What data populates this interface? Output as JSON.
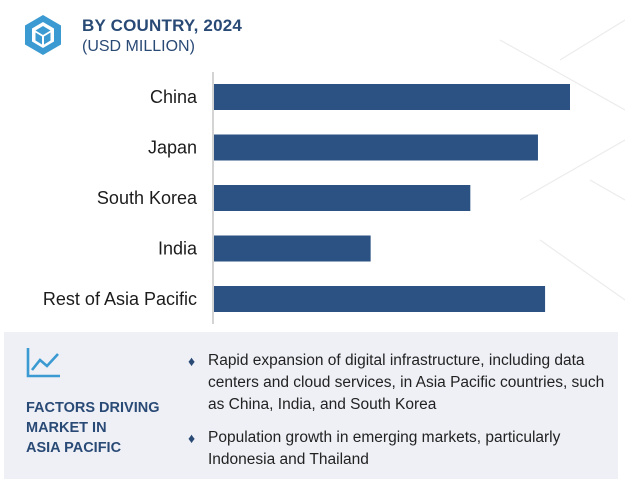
{
  "header": {
    "title": "BY COUNTRY, 2024",
    "subtitle": "(USD MILLION)",
    "logo_icon": "cube-logo-icon"
  },
  "colors": {
    "bar": "#2b5283",
    "accent": "#2a4a76",
    "axis": "#b8b8b8",
    "footer_bg": "#eef0f6"
  },
  "chart_data": {
    "type": "bar",
    "orientation": "horizontal",
    "title": "BY COUNTRY, 2024",
    "subtitle": "(USD MILLION)",
    "categories": [
      "China",
      "Japan",
      "South Korea",
      "India",
      "Rest of Asia Pacific"
    ],
    "values": [
      100,
      91,
      72,
      44,
      93
    ],
    "xlabel": "",
    "ylabel": "",
    "xlim": [
      0,
      100
    ],
    "grid": false,
    "legend": "none"
  },
  "factors": {
    "icon": "trend-chart-icon",
    "title_lines": [
      "FACTORS DRIVING",
      "MARKET IN",
      "ASIA PACIFIC"
    ],
    "bullets": [
      "Rapid expansion of digital infrastructure, including data centers and cloud services, in Asia Pacific countries, such as China, India, and South Korea",
      "Population growth in emerging markets, particularly Indonesia and Thailand"
    ],
    "bullet_icon": "diamond-bullet-icon"
  }
}
